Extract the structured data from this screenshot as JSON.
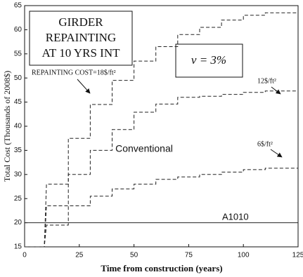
{
  "chart_data": {
    "type": "line",
    "title_lines": [
      "GIRDER",
      "REPAINTING",
      "AT 10 YRS INT"
    ],
    "rate_label": "ν = 3%",
    "annotation": "Conventional",
    "x_label": "Time from construction (years)",
    "y_label": "Total Cost (Thousands of 2008$)",
    "x": [
      0,
      9,
      10,
      20,
      20,
      30,
      30,
      40,
      40,
      50,
      50,
      60,
      60,
      70,
      70,
      80,
      80,
      90,
      90,
      100,
      100,
      110,
      110,
      125
    ],
    "series": [
      {
        "name": "REPAINTING COST=18$/ft²",
        "color": "#222222",
        "dashed": true,
        "values": [
          15,
          15,
          28,
          28,
          37.5,
          37.5,
          44.5,
          44.5,
          49.5,
          49.5,
          53.5,
          53.5,
          56.5,
          56.5,
          59,
          59,
          60.5,
          60.5,
          62,
          62,
          63,
          63,
          63.5,
          63.5
        ]
      },
      {
        "name": "12$/ft²",
        "color": "#222222",
        "dashed": true,
        "values": [
          15,
          15,
          23.5,
          23.5,
          30,
          30,
          35,
          35,
          39.3,
          39.3,
          42.9,
          42.9,
          44.6,
          44.6,
          46,
          46,
          46.2,
          46.2,
          46.6,
          46.6,
          47,
          47,
          47.3,
          47.3
        ]
      },
      {
        "name": "6$/ft²",
        "color": "#222222",
        "dashed": true,
        "values": [
          15,
          15,
          19.5,
          19.5,
          23.5,
          23.5,
          25.5,
          25.5,
          27,
          27,
          28,
          28,
          29,
          29,
          29.5,
          29.5,
          30,
          30,
          30.5,
          30.5,
          31,
          31,
          31.3,
          31.3
        ]
      },
      {
        "name": "A1010",
        "color": "#222222",
        "dashed": false,
        "values": [
          20,
          20,
          20,
          20,
          20,
          20,
          20,
          20,
          20,
          20,
          20,
          20,
          20,
          20,
          20,
          20,
          20,
          20,
          20,
          20,
          20,
          20,
          20,
          20
        ]
      }
    ],
    "xlim": [
      0,
      125
    ],
    "xticks": [
      0,
      25,
      50,
      75,
      100,
      125
    ],
    "ylim": [
      15,
      65
    ],
    "yticks": [
      15,
      20,
      25,
      30,
      35,
      40,
      45,
      50,
      55,
      60,
      65
    ]
  }
}
